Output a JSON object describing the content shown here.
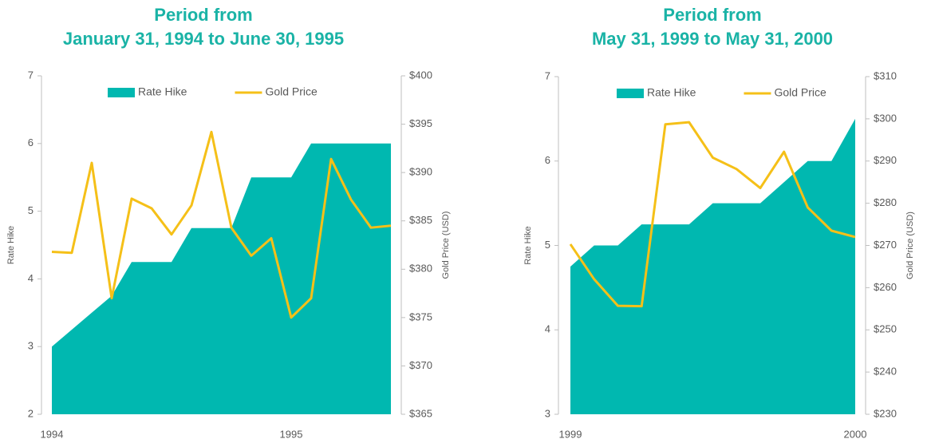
{
  "chart_data": [
    {
      "type": "area-line",
      "title": "Period from",
      "subtitle": "January 31, 1994 to June 30, 1995",
      "categories": [
        "1994",
        null,
        null,
        null,
        null,
        null,
        null,
        null,
        null,
        null,
        null,
        null,
        "1995",
        null,
        null,
        null,
        null,
        null
      ],
      "series": [
        {
          "name": "Rate Hike",
          "color": "#00b8b0",
          "kind": "area",
          "values": [
            3,
            3.25,
            3.5,
            3.75,
            4.25,
            4.25,
            4.25,
            4.75,
            4.75,
            4.75,
            5.5,
            5.5,
            5.5,
            6,
            6,
            6,
            6,
            6
          ]
        },
        {
          "name": "Gold Price",
          "color": "#f5c018",
          "kind": "line",
          "axis": "y2",
          "values": [
            381.8,
            381.7,
            391.0,
            377.0,
            387.3,
            386.3,
            383.6,
            386.6,
            394.2,
            384.3,
            381.4,
            383.2,
            375.0,
            377.0,
            391.4,
            387.2,
            384.3,
            384.5
          ]
        }
      ],
      "ylabel": "Rate Hike",
      "y2label": "Gold Price (USD)",
      "ylim": [
        2,
        7
      ],
      "yticks": [
        2,
        3,
        4,
        5,
        6,
        7
      ],
      "y2lim": [
        365,
        400
      ],
      "y2ticks": [
        {
          "value": 365,
          "label": "$365"
        },
        {
          "value": 370,
          "label": "$370"
        },
        {
          "value": 375,
          "label": "$375"
        },
        {
          "value": 380,
          "label": "$380"
        },
        {
          "value": 385,
          "label": "$385"
        },
        {
          "value": 390,
          "label": "$390"
        },
        {
          "value": 395,
          "label": "$395"
        },
        {
          "value": 400,
          "label": "$400"
        }
      ],
      "legend": "top"
    },
    {
      "type": "area-line",
      "title": "Period from",
      "subtitle": "May 31, 1999 to May 31, 2000",
      "categories": [
        "1999",
        null,
        null,
        null,
        null,
        null,
        null,
        null,
        null,
        null,
        null,
        null,
        "2000"
      ],
      "series": [
        {
          "name": "Rate Hike",
          "color": "#00b8b0",
          "kind": "area",
          "values": [
            4.75,
            5,
            5,
            5.25,
            5.25,
            5.25,
            5.5,
            5.5,
            5.5,
            5.75,
            6,
            6,
            6.5
          ]
        },
        {
          "name": "Gold Price",
          "color": "#f5c018",
          "kind": "line",
          "axis": "y2",
          "values": [
            270.3,
            262.0,
            255.7,
            255.6,
            298.7,
            299.2,
            290.8,
            288.1,
            283.6,
            292.2,
            279.0,
            273.5,
            272.0
          ]
        }
      ],
      "ylabel": "Rate Hike",
      "y2label": "Gold Price (USD)",
      "ylim": [
        3,
        7
      ],
      "yticks": [
        3,
        4,
        5,
        6,
        7
      ],
      "y2lim": [
        230,
        310
      ],
      "y2ticks": [
        {
          "value": 230,
          "label": "$230"
        },
        {
          "value": 240,
          "label": "$240"
        },
        {
          "value": 250,
          "label": "$250"
        },
        {
          "value": 260,
          "label": "$260"
        },
        {
          "value": 270,
          "label": "$270"
        },
        {
          "value": 280,
          "label": "$280"
        },
        {
          "value": 290,
          "label": "$290"
        },
        {
          "value": 300,
          "label": "$300"
        },
        {
          "value": 310,
          "label": "$310"
        }
      ],
      "legend": "top"
    }
  ]
}
